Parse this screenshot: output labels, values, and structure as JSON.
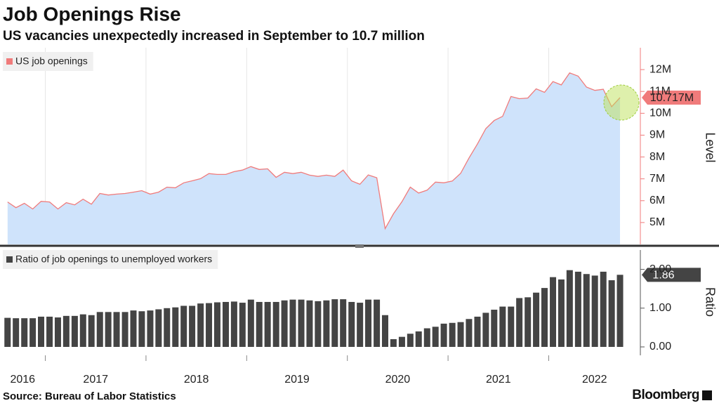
{
  "chart_data": [
    {
      "type": "area",
      "title": "Job Openings Rise",
      "subtitle": "US vacancies unexpectedly increased in September to 10.7 million",
      "x": [
        2016.625,
        2016.708,
        2016.792,
        2016.875,
        2016.958,
        2017.042,
        2017.125,
        2017.208,
        2017.292,
        2017.375,
        2017.458,
        2017.542,
        2017.625,
        2017.708,
        2017.792,
        2017.875,
        2017.958,
        2018.042,
        2018.125,
        2018.208,
        2018.292,
        2018.375,
        2018.458,
        2018.542,
        2018.625,
        2018.708,
        2018.792,
        2018.875,
        2018.958,
        2019.042,
        2019.125,
        2019.208,
        2019.292,
        2019.375,
        2019.458,
        2019.542,
        2019.625,
        2019.708,
        2019.792,
        2019.875,
        2019.958,
        2020.042,
        2020.125,
        2020.208,
        2020.292,
        2020.375,
        2020.458,
        2020.542,
        2020.625,
        2020.708,
        2020.792,
        2020.875,
        2020.958,
        2021.042,
        2021.125,
        2021.208,
        2021.292,
        2021.375,
        2021.458,
        2021.542,
        2021.625,
        2021.708,
        2021.792,
        2021.875,
        2021.958,
        2022.042,
        2022.125,
        2022.208,
        2022.292,
        2022.375,
        2022.458,
        2022.542,
        2022.625,
        2022.708
      ],
      "series": [
        {
          "name": "US job openings",
          "color": "#f07b7b",
          "fill": "#cfe3fb",
          "values": [
            5.94,
            5.68,
            5.88,
            5.62,
            5.97,
            5.94,
            5.62,
            5.91,
            5.81,
            6.07,
            5.84,
            6.33,
            6.26,
            6.3,
            6.33,
            6.39,
            6.46,
            6.3,
            6.39,
            6.62,
            6.59,
            6.82,
            6.91,
            7.01,
            7.24,
            7.2,
            7.2,
            7.33,
            7.4,
            7.56,
            7.43,
            7.46,
            7.07,
            7.3,
            7.24,
            7.3,
            7.17,
            7.11,
            7.17,
            7.11,
            7.4,
            6.91,
            6.75,
            7.18,
            7.05,
            4.72,
            5.4,
            5.95,
            6.62,
            6.35,
            6.48,
            6.85,
            6.82,
            6.9,
            7.25,
            7.95,
            8.6,
            9.3,
            9.67,
            9.86,
            10.77,
            10.67,
            10.7,
            11.12,
            10.96,
            11.45,
            11.3,
            11.85,
            11.7,
            11.2,
            11.05,
            11.1,
            10.3,
            10.717
          ],
          "value_labels": [
            null,
            null,
            null,
            null,
            null,
            null,
            null,
            null,
            null,
            null,
            null,
            null,
            null,
            null,
            null,
            null,
            null,
            null,
            null,
            null,
            null,
            null,
            null,
            null,
            null,
            null,
            null,
            null,
            null,
            null,
            null,
            null,
            null,
            null,
            null,
            null,
            null,
            null,
            null,
            null,
            null,
            null,
            null,
            null,
            null,
            null,
            null,
            null,
            null,
            null,
            null,
            null,
            null,
            null,
            null,
            null,
            null,
            null,
            null,
            null,
            null,
            null,
            null,
            null,
            null,
            null,
            null,
            null,
            null,
            null,
            null,
            null,
            null,
            "10.717M"
          ]
        }
      ],
      "ylabel": "Level",
      "xlim": [
        2016.55,
        2022.91
      ],
      "xticks": [
        2017,
        2018,
        2019,
        2020,
        2021,
        2022
      ],
      "ylim": [
        4,
        13
      ],
      "yticks": [
        {
          "value": 5,
          "label": "5M"
        },
        {
          "value": 6,
          "label": "6M"
        },
        {
          "value": 7,
          "label": "7M"
        },
        {
          "value": 8,
          "label": "8M"
        },
        {
          "value": 9,
          "label": "9M"
        },
        {
          "value": 10,
          "label": "10M"
        },
        {
          "value": 11,
          "label": "11M"
        },
        {
          "value": 12,
          "label": "12M"
        }
      ],
      "grid": true
    },
    {
      "type": "bar",
      "x": [
        2016.625,
        2016.708,
        2016.792,
        2016.875,
        2016.958,
        2017.042,
        2017.125,
        2017.208,
        2017.292,
        2017.375,
        2017.458,
        2017.542,
        2017.625,
        2017.708,
        2017.792,
        2017.875,
        2017.958,
        2018.042,
        2018.125,
        2018.208,
        2018.292,
        2018.375,
        2018.458,
        2018.542,
        2018.625,
        2018.708,
        2018.792,
        2018.875,
        2018.958,
        2019.042,
        2019.125,
        2019.208,
        2019.292,
        2019.375,
        2019.458,
        2019.542,
        2019.625,
        2019.708,
        2019.792,
        2019.875,
        2019.958,
        2020.042,
        2020.125,
        2020.208,
        2020.292,
        2020.375,
        2020.458,
        2020.542,
        2020.625,
        2020.708,
        2020.792,
        2020.875,
        2020.958,
        2021.042,
        2021.125,
        2021.208,
        2021.292,
        2021.375,
        2021.458,
        2021.542,
        2021.625,
        2021.708,
        2021.792,
        2021.875,
        2021.958,
        2022.042,
        2022.125,
        2022.208,
        2022.292,
        2022.375,
        2022.458,
        2022.542,
        2022.625,
        2022.708
      ],
      "series": [
        {
          "name": "Ratio of job openings to unemployed workers",
          "color": "#444444",
          "values": [
            0.75,
            0.74,
            0.74,
            0.74,
            0.78,
            0.78,
            0.76,
            0.8,
            0.8,
            0.84,
            0.82,
            0.9,
            0.9,
            0.9,
            0.9,
            0.94,
            0.92,
            0.94,
            0.97,
            1.0,
            1.02,
            1.06,
            1.06,
            1.12,
            1.13,
            1.15,
            1.16,
            1.17,
            1.14,
            1.22,
            1.16,
            1.16,
            1.16,
            1.2,
            1.22,
            1.22,
            1.2,
            1.18,
            1.2,
            1.23,
            1.23,
            1.16,
            1.14,
            1.22,
            1.22,
            0.82,
            0.2,
            0.26,
            0.34,
            0.4,
            0.48,
            0.52,
            0.6,
            0.62,
            0.64,
            0.72,
            0.78,
            0.88,
            0.96,
            1.04,
            1.04,
            1.26,
            1.28,
            1.4,
            1.52,
            1.8,
            1.74,
            1.98,
            1.94,
            1.88,
            1.84,
            1.94,
            1.72,
            1.86
          ]
        }
      ],
      "ylabel": "Ratio",
      "xlim": [
        2016.55,
        2022.91
      ],
      "xticks": [
        2016,
        2017,
        2018,
        2019,
        2020,
        2021,
        2022
      ],
      "ylim": [
        0,
        2.5
      ],
      "yticks": [
        {
          "value": 0,
          "label": "0.00"
        },
        {
          "value": 1,
          "label": "1.00"
        },
        {
          "value": 2,
          "label": "2.00"
        }
      ]
    }
  ],
  "source": "Source: Bureau of Labor Statistics",
  "brand": "Bloomberg"
}
